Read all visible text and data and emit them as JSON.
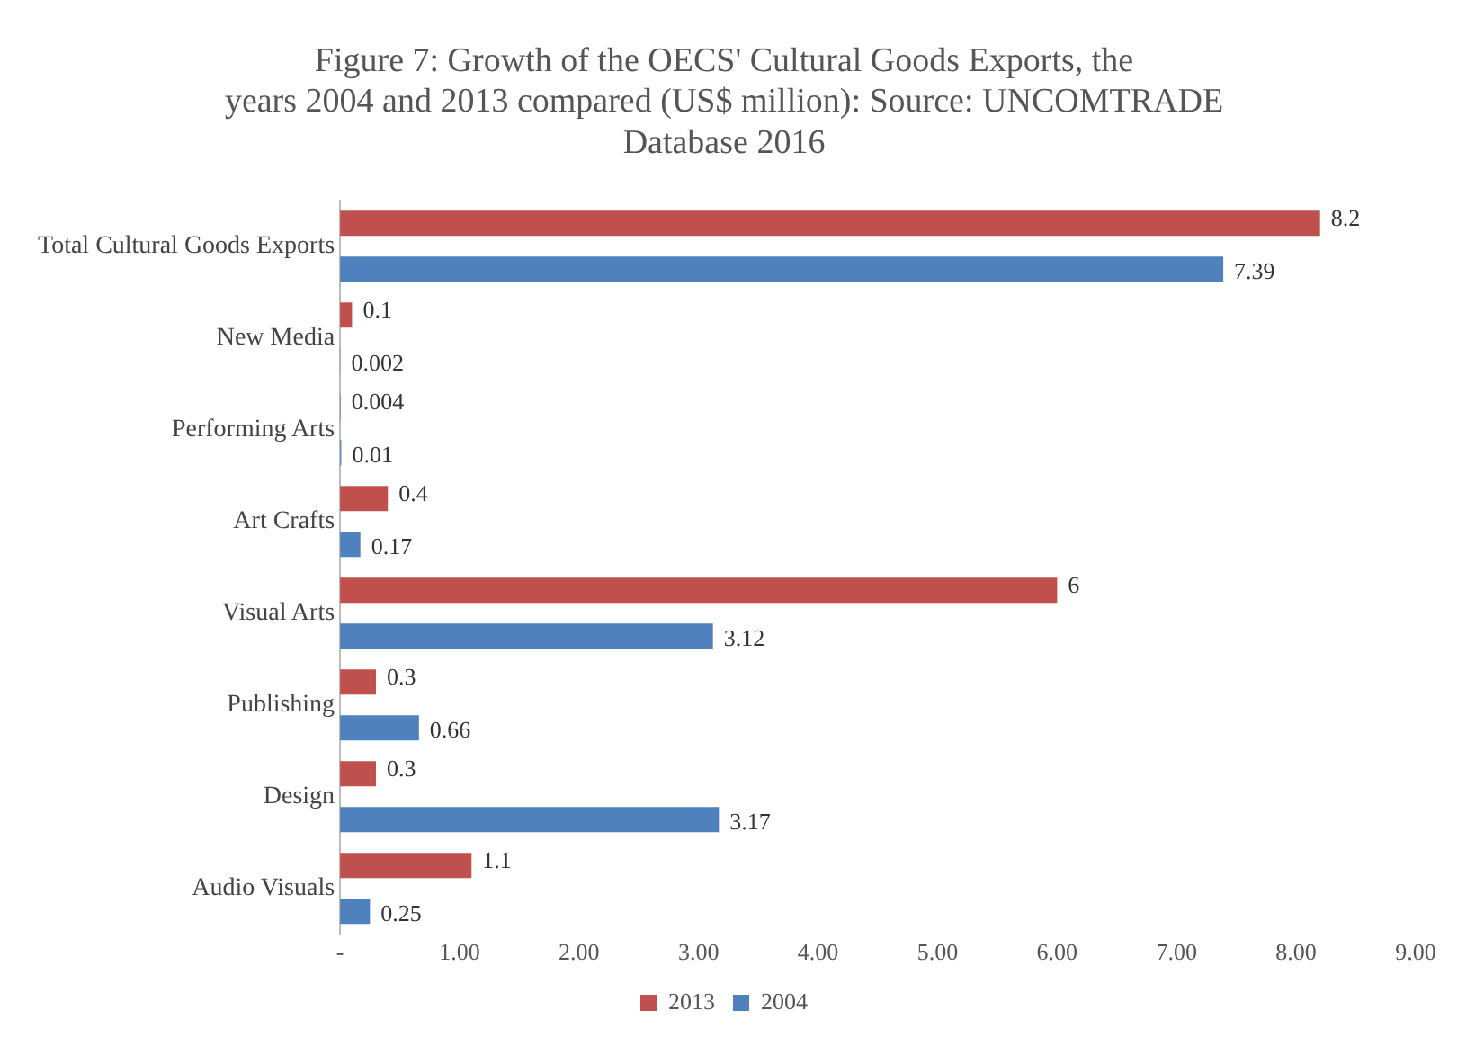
{
  "chart_data": {
    "type": "bar",
    "orientation": "horizontal",
    "title": "Figure 7: Growth of the OECS' Cultural Goods Exports, the years 2004 and 2013 compared (US$ million): Source: UNCOMTRADE Database 2016",
    "categories": [
      "Total Cultural Goods Exports",
      "New Media",
      "Performing Arts",
      "Art Crafts",
      "Visual Arts",
      "Publishing",
      "Design",
      "Audio Visuals"
    ],
    "series": [
      {
        "name": "2013",
        "color": "#c0504d",
        "values": [
          8.2,
          0.1,
          0.004,
          0.4,
          6,
          0.3,
          0.3,
          1.1
        ]
      },
      {
        "name": "2004",
        "color": "#4f81bd",
        "values": [
          7.39,
          0.002,
          0.01,
          0.17,
          3.12,
          0.66,
          3.17,
          0.25
        ]
      }
    ],
    "xlim": [
      0,
      9
    ],
    "xticks": [
      {
        "value": 0,
        "label": "-"
      },
      {
        "value": 1,
        "label": "1.00"
      },
      {
        "value": 2,
        "label": "2.00"
      },
      {
        "value": 3,
        "label": "3.00"
      },
      {
        "value": 4,
        "label": "4.00"
      },
      {
        "value": 5,
        "label": "5.00"
      },
      {
        "value": 6,
        "label": "6.00"
      },
      {
        "value": 7,
        "label": "7.00"
      },
      {
        "value": 8,
        "label": "8.00"
      },
      {
        "value": 9,
        "label": "9.00"
      }
    ],
    "data_labels": true,
    "grid": false,
    "legend": "bottom"
  }
}
